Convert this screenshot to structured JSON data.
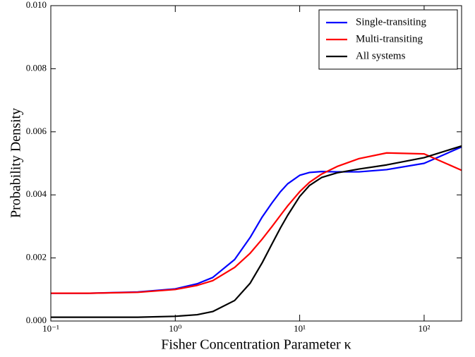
{
  "chart_data": {
    "type": "line",
    "x_label": "Fisher Concentration Parameter κ",
    "y_label": "Probability Density",
    "x_scale": "log",
    "x": [
      0.1,
      0.2,
      0.5,
      1,
      1.5,
      2,
      3,
      4,
      5,
      6,
      7,
      8,
      10,
      12,
      15,
      20,
      30,
      50,
      100,
      200
    ],
    "series": [
      {
        "name": "Single-transiting",
        "color": "#0000ff",
        "values": [
          0.00088,
          0.00088,
          0.00092,
          0.00102,
          0.00118,
          0.00138,
          0.00195,
          0.00265,
          0.0033,
          0.00375,
          0.0041,
          0.00435,
          0.00462,
          0.00471,
          0.00474,
          0.00473,
          0.00473,
          0.0048,
          0.005,
          0.00552
        ]
      },
      {
        "name": "Multi-transiting",
        "color": "#ff0000",
        "values": [
          0.00088,
          0.00088,
          0.00091,
          0.001,
          0.00113,
          0.00128,
          0.0017,
          0.00215,
          0.0026,
          0.003,
          0.00335,
          0.00365,
          0.0041,
          0.0044,
          0.00466,
          0.0049,
          0.00515,
          0.00533,
          0.0053,
          0.00478
        ]
      },
      {
        "name": "All systems",
        "color": "#000000",
        "values": [
          0.00012,
          0.00012,
          0.00012,
          0.00015,
          0.0002,
          0.0003,
          0.00065,
          0.0012,
          0.00185,
          0.00245,
          0.00295,
          0.00335,
          0.00395,
          0.0043,
          0.00455,
          0.0047,
          0.00482,
          0.00495,
          0.00518,
          0.00555
        ]
      }
    ],
    "xlim": [
      0.1,
      200
    ],
    "xticks": [
      {
        "value": 0.1,
        "label": "10⁻¹"
      },
      {
        "value": 1,
        "label": "10⁰"
      },
      {
        "value": 10,
        "label": "10¹"
      },
      {
        "value": 100,
        "label": "10²"
      }
    ],
    "ylim": [
      0,
      0.01
    ],
    "yticks": [
      {
        "value": 0,
        "label": "0.000"
      },
      {
        "value": 0.002,
        "label": "0.002"
      },
      {
        "value": 0.004,
        "label": "0.004"
      },
      {
        "value": 0.006,
        "label": "0.006"
      },
      {
        "value": 0.008,
        "label": "0.008"
      },
      {
        "value": 0.01,
        "label": "0.010"
      }
    ],
    "legend": "upper right"
  }
}
